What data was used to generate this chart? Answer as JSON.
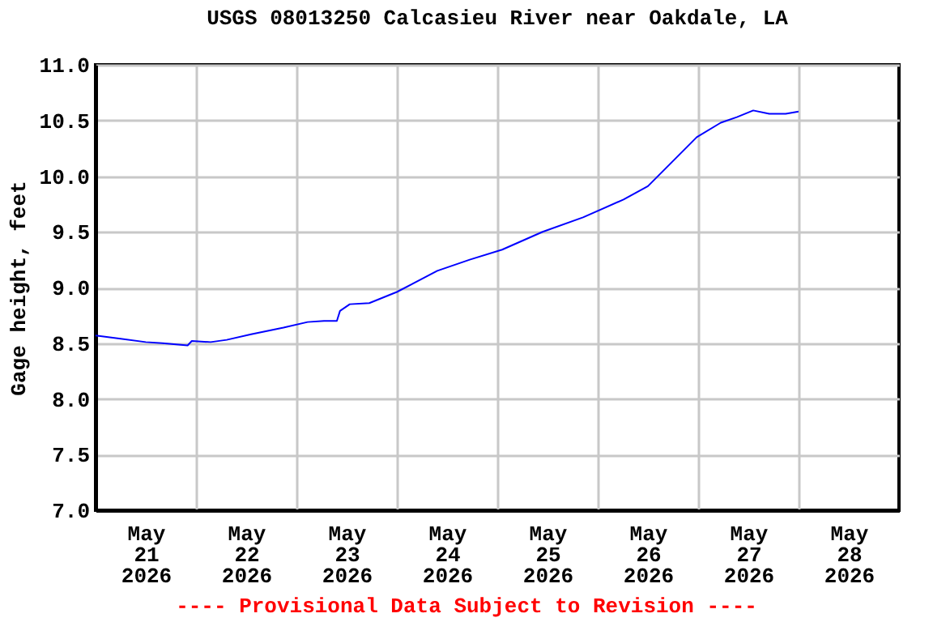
{
  "chart_data": {
    "type": "line",
    "title": "USGS 08013250 Calcasieu River near Oakdale, LA",
    "ylabel": "Gage height, feet",
    "annotations": [
      "---- Provisional Data Subject to Revision ----"
    ],
    "x": [
      "2026-05-21T00:00",
      "2026-05-21T06:00",
      "2026-05-21T12:00",
      "2026-05-21T16:00",
      "2026-05-21T22:00",
      "2026-05-21T23:00",
      "2026-05-22T03:30",
      "2026-05-22T07:20",
      "2026-05-22T13:10",
      "2026-05-22T20:55",
      "2026-05-23T02:40",
      "2026-05-23T06:35",
      "2026-05-23T09:40",
      "2026-05-23T10:25",
      "2026-05-23T12:45",
      "2026-05-23T17:25",
      "2026-05-24T00:00",
      "2026-05-24T09:40",
      "2026-05-24T17:25",
      "2026-05-25T01:10",
      "2026-05-25T10:50",
      "2026-05-25T20:30",
      "2026-05-26T06:10",
      "2026-05-26T12:00",
      "2026-05-26T17:50",
      "2026-05-26T23:40",
      "2026-05-27T05:25",
      "2026-05-27T09:15",
      "2026-05-27T13:10",
      "2026-05-27T17:00",
      "2026-05-27T20:55",
      "2026-05-28T00:00"
    ],
    "series": [
      {
        "color": "#0000ff",
        "values": [
          8.57,
          8.54,
          8.51,
          8.5,
          8.48,
          8.52,
          8.51,
          8.53,
          8.58,
          8.64,
          8.69,
          8.7,
          8.7,
          8.79,
          8.85,
          8.86,
          8.96,
          9.15,
          9.25,
          9.34,
          9.5,
          9.63,
          9.79,
          9.91,
          10.13,
          10.35,
          10.48,
          10.53,
          10.59,
          10.56,
          10.56,
          10.58
        ]
      }
    ],
    "xlim": [
      "2026-05-21T00:00",
      "2026-05-29T00:00"
    ],
    "xticks": [
      {
        "value": "2026-05-21T12:00",
        "label": "May\n21\n2026"
      },
      {
        "value": "2026-05-22T12:00",
        "label": "May\n22\n2026"
      },
      {
        "value": "2026-05-23T12:00",
        "label": "May\n23\n2026"
      },
      {
        "value": "2026-05-24T12:00",
        "label": "May\n24\n2026"
      },
      {
        "value": "2026-05-25T12:00",
        "label": "May\n25\n2026"
      },
      {
        "value": "2026-05-26T12:00",
        "label": "May\n26\n2026"
      },
      {
        "value": "2026-05-27T12:00",
        "label": "May\n27\n2026"
      },
      {
        "value": "2026-05-28T12:00",
        "label": "May\n28\n2026"
      },
      {
        "value": "2026-05-22T00:00",
        "label": null
      },
      {
        "value": "2026-05-23T00:00",
        "label": null
      },
      {
        "value": "2026-05-24T00:00",
        "label": null
      },
      {
        "value": "2026-05-25T00:00",
        "label": null
      },
      {
        "value": "2026-05-26T00:00",
        "label": null
      },
      {
        "value": "2026-05-27T00:00",
        "label": null
      },
      {
        "value": "2026-05-28T00:00",
        "label": null
      }
    ],
    "ylim": [
      7,
      11
    ],
    "yticks": [
      {
        "value": 7,
        "label": "7.0"
      },
      {
        "value": 7.5,
        "label": "7.5"
      },
      {
        "value": 8,
        "label": "8.0"
      },
      {
        "value": 8.5,
        "label": "8.5"
      },
      {
        "value": 9,
        "label": "9.0"
      },
      {
        "value": 9.5,
        "label": "9.5"
      },
      {
        "value": 10,
        "label": "10.0"
      },
      {
        "value": 10.5,
        "label": "10.5"
      },
      {
        "value": 11,
        "label": "11.0"
      }
    ],
    "grid": true
  }
}
